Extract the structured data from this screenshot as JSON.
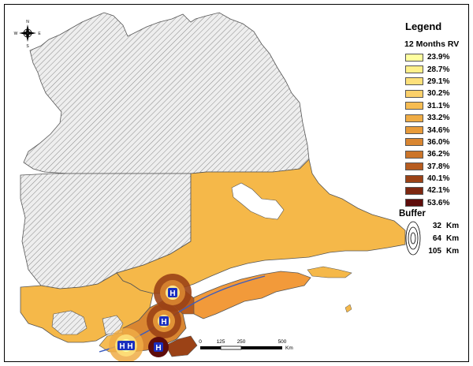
{
  "compass": {
    "north": "N",
    "south": "S",
    "east": "E",
    "west": "W"
  },
  "legend": {
    "title": "Legend",
    "subtitle": "12 Months RV",
    "classes": [
      {
        "label": "23.9%",
        "color": "#ffff9f"
      },
      {
        "label": "28.7%",
        "color": "#fff08a"
      },
      {
        "label": "29.1%",
        "color": "#fde07a"
      },
      {
        "label": "30.2%",
        "color": "#fbd06a"
      },
      {
        "label": "31.1%",
        "color": "#f6bc52"
      },
      {
        "label": "33.2%",
        "color": "#efac45"
      },
      {
        "label": "34.6%",
        "color": "#e89b3a"
      },
      {
        "label": "36.0%",
        "color": "#d98631"
      },
      {
        "label": "36.2%",
        "color": "#cc7529"
      },
      {
        "label": "37.8%",
        "color": "#b75c1f"
      },
      {
        "label": "40.1%",
        "color": "#9b4216"
      },
      {
        "label": "42.1%",
        "color": "#7d2710"
      },
      {
        "label": "53.6%",
        "color": "#5e0d0b"
      }
    ],
    "buffer_title": "Buffer",
    "buffer_rows": [
      {
        "value": "32",
        "unit": "Km"
      },
      {
        "value": "64",
        "unit": "Km"
      },
      {
        "value": "105",
        "unit": "Km"
      }
    ]
  },
  "scalebar": {
    "ticks": [
      "0",
      "125",
      "250",
      "500"
    ],
    "unit": "Km"
  },
  "hospitals": [
    {
      "label": "H",
      "fraction_of_width": 0
    },
    {
      "label": "H",
      "fraction_of_width": 0
    },
    {
      "label": "H",
      "fraction_of_width": 0
    },
    {
      "label": "H",
      "fraction_of_width": 0
    },
    {
      "label": "H",
      "fraction_of_width": 0
    }
  ],
  "colors": {
    "region_default": "#f5b849",
    "no_data_hatch": "#d0d0d0",
    "river": "#3a5bbf",
    "hospital_icon": "#1a2fbf"
  }
}
